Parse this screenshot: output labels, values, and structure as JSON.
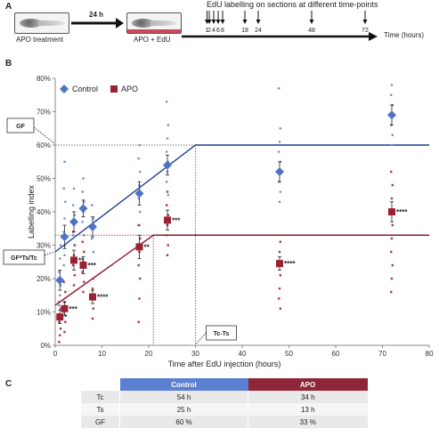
{
  "panel_a": {
    "letter": "A",
    "step1_label": "APO treatment",
    "arrow_label": "24 h",
    "step2_label": "APO + EdU",
    "timeline_title": "EdU labelling on sections at different time-points",
    "time_ticks": [
      "1",
      "2",
      "4",
      "6",
      "8",
      "18",
      "24",
      "48",
      "72"
    ],
    "axis_label": "Time (hours)"
  },
  "panel_b": {
    "letter": "B"
  },
  "panel_c": {
    "letter": "C",
    "headers": [
      "",
      "Control",
      "APO"
    ],
    "rows": [
      [
        "Tc",
        "54 h",
        "34 h"
      ],
      [
        "Ts",
        "25 h",
        "13 h"
      ],
      [
        "GF",
        "60 %",
        "33 %"
      ]
    ]
  },
  "chart_data": {
    "type": "scatter",
    "xlabel": "Time after EdU injection (hours)",
    "ylabel": "Labelling index",
    "xlim": [
      0,
      80
    ],
    "ylim": [
      0,
      80
    ],
    "x_ticks": [
      "0",
      "10",
      "20",
      "30",
      "40",
      "50",
      "60",
      "70",
      "80"
    ],
    "y_ticks": [
      "0%",
      "10%",
      "20%",
      "30%",
      "40%",
      "50%",
      "60%",
      "70%",
      "80%"
    ],
    "legend_position": "top-left",
    "grid": false,
    "colors": {
      "control": "#4f72c4",
      "apo": "#9b2233"
    },
    "series": [
      {
        "name": "Control",
        "x": [
          1,
          2,
          4,
          6,
          8,
          18,
          24,
          48,
          72
        ],
        "y": [
          19.5,
          32.5,
          37,
          41,
          35.5,
          45.5,
          54,
          52,
          69
        ],
        "err": [
          3,
          3.5,
          3,
          2.5,
          3,
          3.5,
          3,
          3,
          3
        ],
        "scatter": [
          [
            1,
            12
          ],
          [
            1,
            15
          ],
          [
            1,
            18
          ],
          [
            1,
            22
          ],
          [
            1,
            26
          ],
          [
            1,
            30
          ],
          [
            2,
            24
          ],
          [
            2,
            27
          ],
          [
            2,
            30
          ],
          [
            2,
            34
          ],
          [
            2,
            38
          ],
          [
            2,
            43
          ],
          [
            2,
            47
          ],
          [
            2,
            55
          ],
          [
            4,
            30
          ],
          [
            4,
            33
          ],
          [
            4,
            36
          ],
          [
            4,
            39
          ],
          [
            4,
            42
          ],
          [
            4,
            47
          ],
          [
            6,
            33
          ],
          [
            6,
            37
          ],
          [
            6,
            40
          ],
          [
            6,
            43
          ],
          [
            6,
            46
          ],
          [
            6,
            50
          ],
          [
            8,
            28
          ],
          [
            8,
            32
          ],
          [
            8,
            35
          ],
          [
            8,
            38
          ],
          [
            8,
            42
          ],
          [
            18,
            36
          ],
          [
            18,
            40
          ],
          [
            18,
            44
          ],
          [
            18,
            48
          ],
          [
            18,
            52
          ],
          [
            18,
            56
          ],
          [
            18,
            60
          ],
          [
            24,
            45
          ],
          [
            24,
            49
          ],
          [
            24,
            52
          ],
          [
            24,
            55
          ],
          [
            24,
            58
          ],
          [
            24,
            62
          ],
          [
            24,
            66
          ],
          [
            24,
            73
          ],
          [
            48,
            43
          ],
          [
            48,
            46
          ],
          [
            48,
            49
          ],
          [
            48,
            52
          ],
          [
            48,
            55
          ],
          [
            48,
            58
          ],
          [
            48,
            61
          ],
          [
            48,
            65
          ],
          [
            48,
            77
          ],
          [
            72,
            60
          ],
          [
            72,
            63
          ],
          [
            72,
            66
          ],
          [
            72,
            69
          ],
          [
            72,
            72
          ],
          [
            72,
            75
          ],
          [
            72,
            78
          ]
        ]
      },
      {
        "name": "APO",
        "x": [
          1,
          2,
          4,
          6,
          8,
          18,
          24,
          48,
          72
        ],
        "y": [
          8.5,
          11,
          25.5,
          24,
          14.5,
          29.5,
          37.5,
          24.5,
          40
        ],
        "err": [
          2,
          2,
          3,
          2.5,
          2,
          3.5,
          3,
          2,
          3
        ],
        "significance": [
          "*",
          "***",
          "**",
          "***",
          "****",
          "**",
          "***",
          "****",
          "****"
        ],
        "scatter": [
          [
            1,
            1
          ],
          [
            1,
            3
          ],
          [
            1,
            5
          ],
          [
            1,
            7
          ],
          [
            1,
            9
          ],
          [
            1,
            11
          ],
          [
            1,
            13
          ],
          [
            2,
            4
          ],
          [
            2,
            7
          ],
          [
            2,
            10
          ],
          [
            2,
            13
          ],
          [
            2,
            16
          ],
          [
            2,
            19
          ],
          [
            4,
            18
          ],
          [
            4,
            21
          ],
          [
            4,
            24
          ],
          [
            4,
            27
          ],
          [
            4,
            30
          ],
          [
            4,
            34
          ],
          [
            6,
            16
          ],
          [
            6,
            19
          ],
          [
            6,
            22
          ],
          [
            6,
            25
          ],
          [
            6,
            28
          ],
          [
            6,
            31
          ],
          [
            8,
            8
          ],
          [
            8,
            11
          ],
          [
            8,
            14
          ],
          [
            8,
            17
          ],
          [
            8,
            20
          ],
          [
            18,
            7
          ],
          [
            18,
            14
          ],
          [
            18,
            20
          ],
          [
            18,
            24
          ],
          [
            18,
            28
          ],
          [
            18,
            32
          ],
          [
            18,
            36
          ],
          [
            24,
            27
          ],
          [
            24,
            30
          ],
          [
            24,
            33
          ],
          [
            24,
            36
          ],
          [
            24,
            39
          ],
          [
            24,
            42
          ],
          [
            24,
            46
          ],
          [
            48,
            11
          ],
          [
            48,
            14
          ],
          [
            48,
            17
          ],
          [
            48,
            21
          ],
          [
            48,
            25
          ],
          [
            48,
            28
          ],
          [
            48,
            31
          ],
          [
            72,
            16
          ],
          [
            72,
            20
          ],
          [
            72,
            24
          ],
          [
            72,
            28
          ],
          [
            72,
            32
          ],
          [
            72,
            36
          ],
          [
            72,
            40
          ],
          [
            72,
            44
          ],
          [
            72,
            48
          ],
          [
            72,
            52
          ]
        ]
      }
    ],
    "fit_lines": [
      {
        "series": "Control",
        "points": [
          [
            0,
            28
          ],
          [
            30,
            60
          ],
          [
            80,
            60
          ]
        ]
      },
      {
        "series": "APO",
        "points": [
          [
            0,
            12
          ],
          [
            21,
            33
          ],
          [
            80,
            33
          ]
        ]
      }
    ],
    "reference_lines": {
      "control_plateau": 60,
      "apo_plateau": 33,
      "control_ts": 30,
      "apo_ts": 21
    },
    "annotations": [
      {
        "label": "GF",
        "x": 0,
        "y": 60
      },
      {
        "label": "GF*Ts/Tc",
        "x": 0,
        "y": 28
      },
      {
        "label": "Tc-Ts",
        "x": 30,
        "y": 0
      }
    ]
  }
}
